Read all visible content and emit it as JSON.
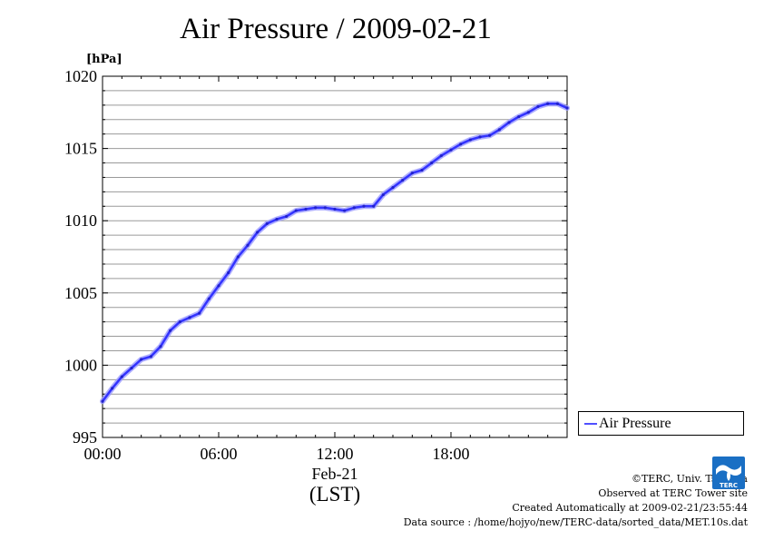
{
  "chart_data": {
    "type": "line",
    "title": "Air Pressure / 2009-02-21",
    "ylabel": "[hPa]",
    "xlabel": "(LST)",
    "date_label": "Feb-21",
    "ylim": [
      995,
      1020
    ],
    "yticks": [
      "995",
      "1000",
      "1005",
      "1010",
      "1015",
      "1020"
    ],
    "xlim_hours": [
      0,
      24
    ],
    "xticks": [
      "00:00",
      "06:00",
      "12:00",
      "18:00"
    ],
    "grid": true,
    "legend_position": "right",
    "color": "#3333ff",
    "series": [
      {
        "name": "Air Pressure",
        "x_hours": [
          0,
          0.5,
          1,
          1.5,
          2,
          2.5,
          3,
          3.5,
          4,
          4.5,
          5,
          5.5,
          6,
          6.5,
          7,
          7.5,
          8,
          8.5,
          9,
          9.5,
          10,
          10.5,
          11,
          11.5,
          12,
          12.5,
          13,
          13.5,
          14,
          14.5,
          15,
          15.5,
          16,
          16.5,
          17,
          17.5,
          18,
          18.5,
          19,
          19.5,
          20,
          20.5,
          21,
          21.5,
          22,
          22.5,
          23,
          23.5,
          24
        ],
        "values": [
          997.5,
          998.4,
          999.2,
          999.8,
          1000.4,
          1000.6,
          1001.3,
          1002.4,
          1003.0,
          1003.3,
          1003.6,
          1004.6,
          1005.5,
          1006.4,
          1007.5,
          1008.3,
          1009.2,
          1009.8,
          1010.1,
          1010.3,
          1010.7,
          1010.8,
          1010.9,
          1010.9,
          1010.8,
          1010.7,
          1010.9,
          1011.0,
          1011.0,
          1011.8,
          1012.3,
          1012.8,
          1013.3,
          1013.5,
          1014.0,
          1014.5,
          1014.9,
          1015.3,
          1015.6,
          1015.8,
          1015.9,
          1016.3,
          1016.8,
          1017.2,
          1017.5,
          1017.9,
          1018.1,
          1018.1,
          1017.8
        ]
      }
    ]
  },
  "credits": {
    "copyright": "©TERC, Univ. Tsukuba",
    "site": "Observed at TERC Tower site",
    "created": "Created Automatically at 2009-02-21/23:55:44",
    "source": "Data source : /home/hojyo/new/TERC-data/sorted_data/MET.10s.dat",
    "logo_text": "TERC"
  }
}
